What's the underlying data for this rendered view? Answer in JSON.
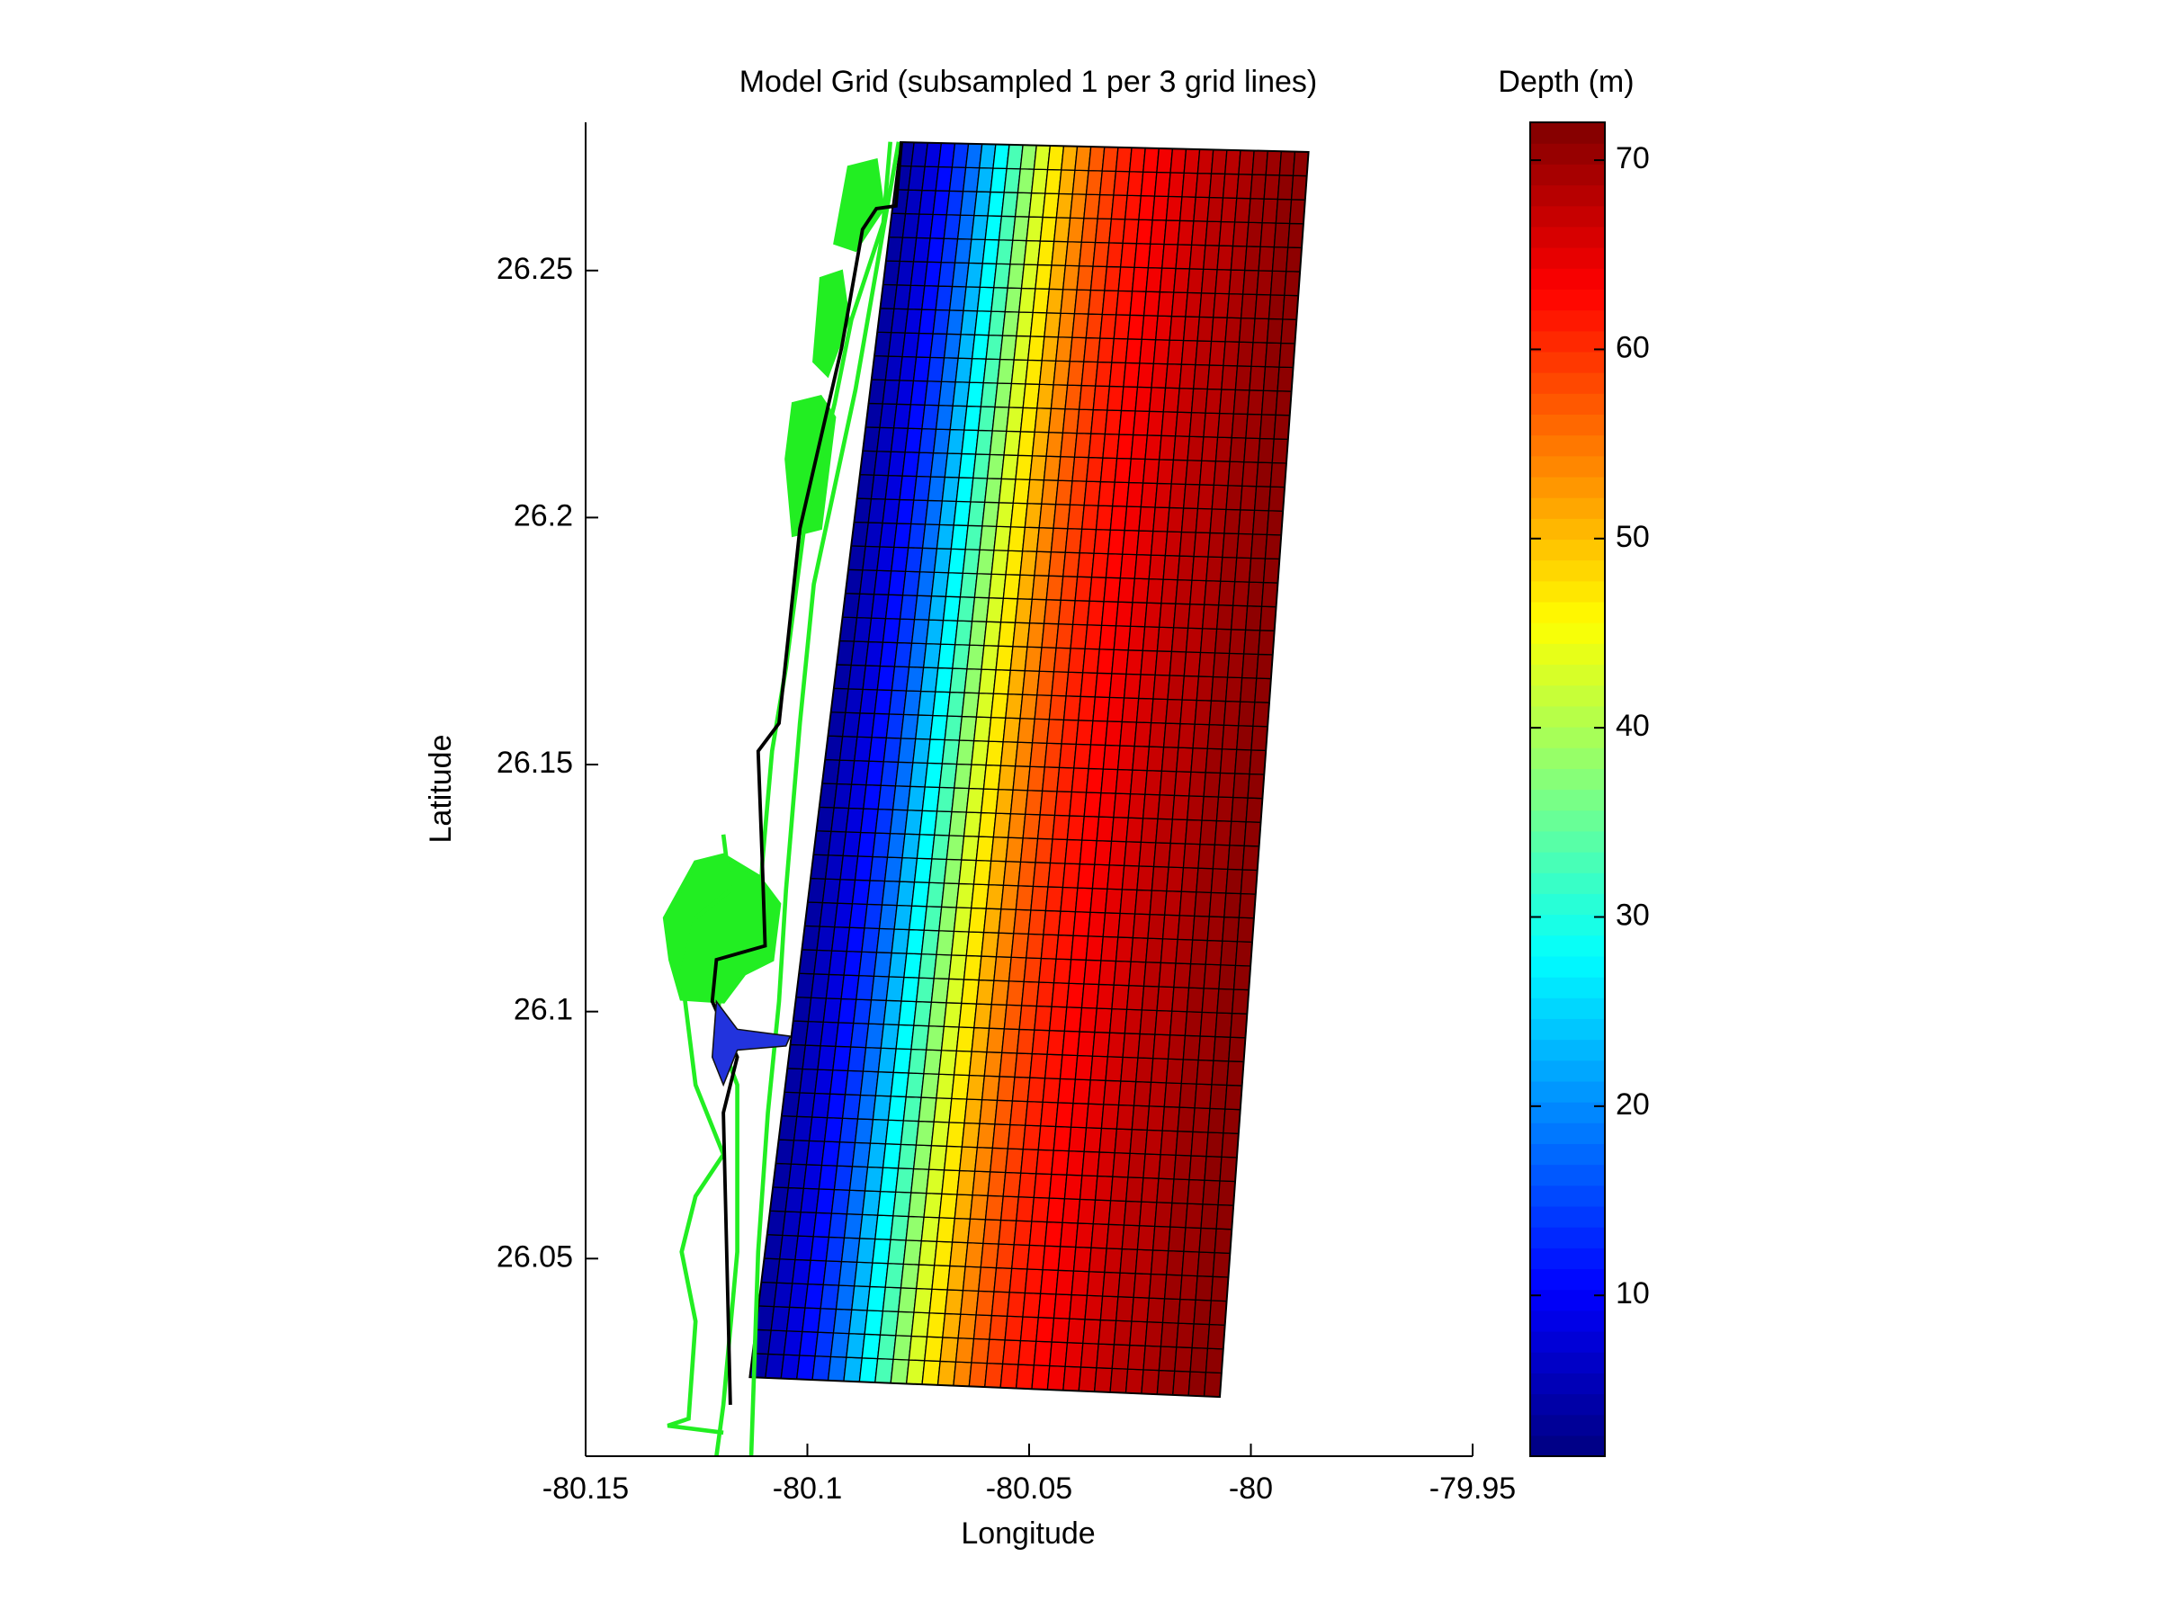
{
  "chart_data": {
    "type": "mesh",
    "title": "Model Grid (subsampled 1 per 3 grid lines)",
    "x_label": "Longitude",
    "y_label": "Latitude",
    "colorbar_label": "Depth (m)",
    "xlim": [
      -80.15,
      -79.95
    ],
    "xticks": [
      -80.15,
      -80.1,
      -80.05,
      -80,
      -79.95
    ],
    "ylim": [
      26.01,
      26.28
    ],
    "yticks": [
      26.05,
      26.1,
      26.15,
      26.2,
      26.25
    ],
    "clim": [
      1.5,
      72
    ],
    "cticks": [
      10,
      20,
      30,
      40,
      50,
      60,
      70
    ],
    "colormap": "jet",
    "grid_lon": [
      -80.113,
      -80.079,
      -79.987,
      -80.007
    ],
    "grid_lat": [
      26.026,
      26.276,
      26.274,
      26.022
    ],
    "grid_rows": 52,
    "depth": [
      4,
      6,
      8,
      11,
      14,
      18,
      23,
      28,
      33,
      38,
      43,
      47,
      51,
      54,
      57,
      59,
      61,
      62,
      63,
      64,
      65,
      66,
      67,
      68,
      68,
      69,
      70,
      70,
      71,
      71
    ]
  }
}
